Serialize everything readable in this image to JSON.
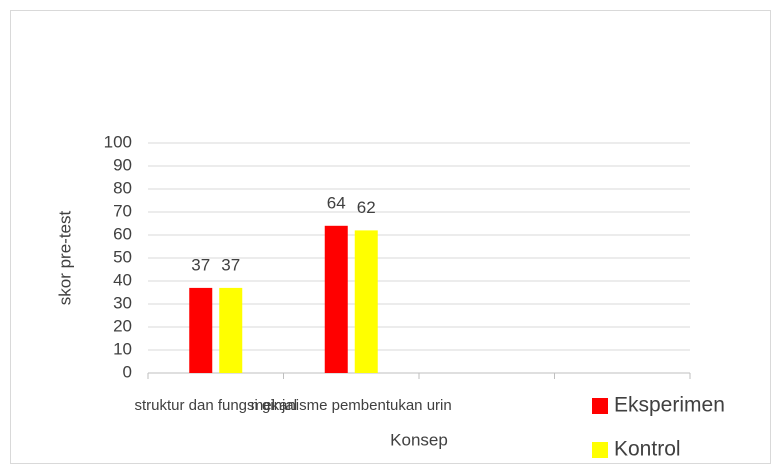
{
  "chart_data": {
    "type": "bar",
    "categories": [
      "struktur dan fungsi ginjal",
      "mekanisme pembentukan urin",
      null,
      null
    ],
    "series": [
      {
        "name": "Eksperimen",
        "color": "#ff0000",
        "values": [
          37,
          64,
          null,
          null
        ]
      },
      {
        "name": "Kontrol",
        "color": "#ffff00",
        "values": [
          37,
          62,
          null,
          null
        ]
      }
    ],
    "ylim": [
      0,
      100
    ],
    "yticks": [
      0,
      10,
      20,
      30,
      40,
      50,
      60,
      70,
      80,
      90,
      100
    ],
    "y_label": "skor pre-test",
    "x_label": "Konsep",
    "grid": true,
    "legend": "bottom-right"
  }
}
